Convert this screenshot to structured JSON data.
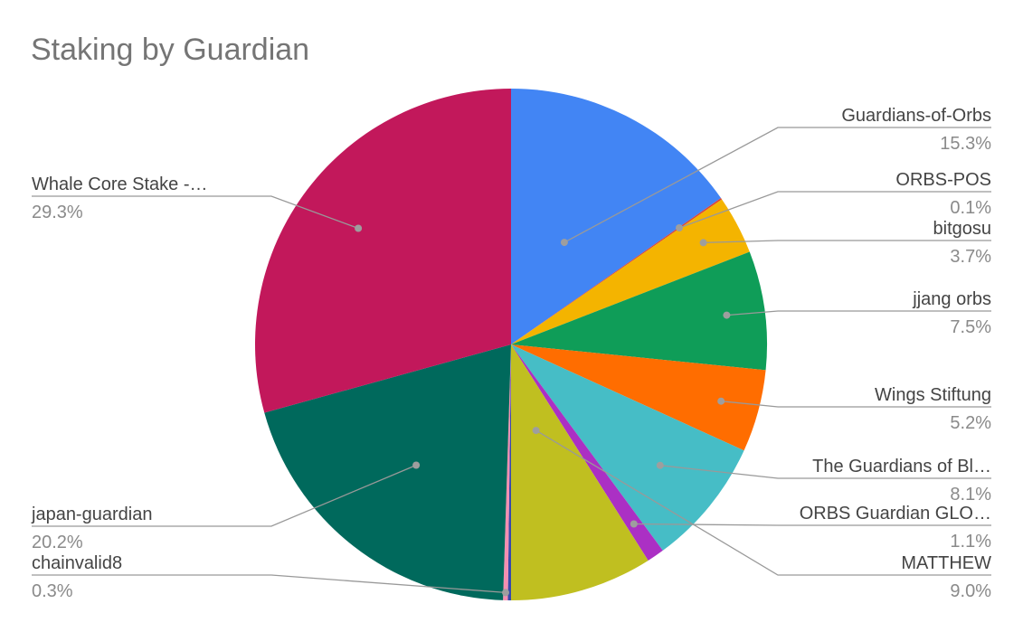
{
  "chart_data": {
    "type": "pie",
    "title": "Staking by Guardian",
    "start_angle_deg": 0,
    "direction": "clockwise",
    "slices": [
      {
        "label": "Guardians-of-Orbs",
        "value": 15.3,
        "display": "15.3%",
        "color": "#4285F4"
      },
      {
        "label": "ORBS-POS",
        "value": 0.1,
        "display": "0.1%",
        "color": "#DB4437"
      },
      {
        "label": "bitgosu",
        "value": 3.7,
        "display": "3.7%",
        "color": "#F4B400"
      },
      {
        "label": "jjang orbs",
        "value": 7.5,
        "display": "7.5%",
        "color": "#0F9D58"
      },
      {
        "label": "Wings Stiftung",
        "value": 5.2,
        "display": "5.2%",
        "color": "#FF6D00"
      },
      {
        "label": "The Guardians of Bl…",
        "value": 8.1,
        "display": "8.1%",
        "color": "#46BDC6"
      },
      {
        "label": "ORBS Guardian GLO…",
        "value": 1.1,
        "display": "1.1%",
        "color": "#AB30C4"
      },
      {
        "label": "MATTHEW",
        "value": 9.0,
        "display": "9.0%",
        "color": "#C0BF20"
      },
      {
        "label": "",
        "value": 0.2,
        "display": "",
        "color": "#3949AB"
      },
      {
        "label": "chainvalid8",
        "value": 0.3,
        "display": "0.3%",
        "color": "#F48FB1"
      },
      {
        "label": "japan-guardian",
        "value": 20.2,
        "display": "20.2%",
        "color": "#00695C"
      },
      {
        "label": "Whale Core Stake -…",
        "value": 29.3,
        "display": "29.3%",
        "color": "#C2185B"
      }
    ]
  }
}
